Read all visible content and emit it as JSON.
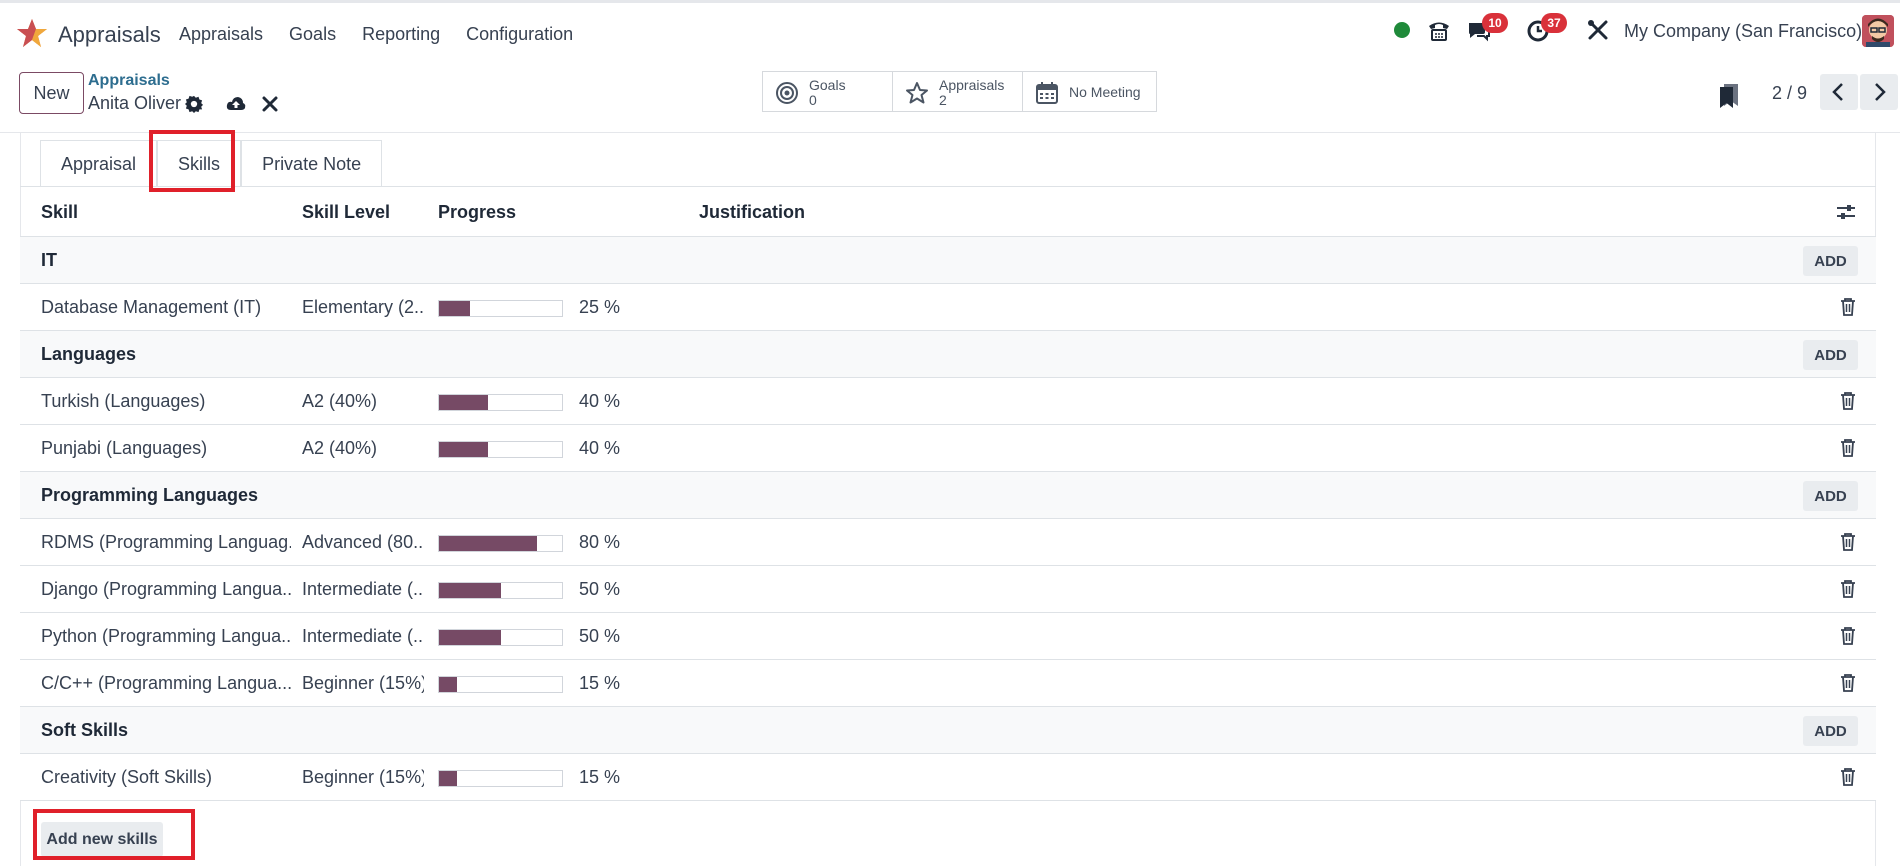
{
  "navbar": {
    "app_name": "Appraisals",
    "menu": [
      "Appraisals",
      "Goals",
      "Reporting",
      "Configuration"
    ],
    "messages_count": "10",
    "activities_count": "37",
    "company": "My Company (San Francisco)",
    "status_color": "#1f8a3a",
    "badge_color": "#d9313a"
  },
  "control_panel": {
    "new_label": "New",
    "breadcrumb_parent": "Appraisals",
    "record_name": "Anita Oliver",
    "smart_buttons": [
      {
        "icon": "bullseye-icon",
        "line1": "Goals",
        "line2": "0"
      },
      {
        "icon": "star-icon",
        "line1": "Appraisals",
        "line2": "2"
      },
      {
        "icon": "calendar-icon",
        "line1": "No Meeting",
        "line2": ""
      }
    ],
    "pager": "2 / 9"
  },
  "tabs": [
    "Appraisal",
    "Skills",
    "Private Note"
  ],
  "active_tab": "Skills",
  "table": {
    "headers": {
      "skill": "Skill",
      "level": "Skill Level",
      "progress": "Progress",
      "justification": "Justification"
    },
    "add_label": "ADD",
    "groups": [
      {
        "name": "IT",
        "rows": [
          {
            "skill": "Database Management (IT)",
            "level": "Elementary (2...",
            "progress": 25,
            "progress_label": "25 %"
          }
        ]
      },
      {
        "name": "Languages",
        "rows": [
          {
            "skill": "Turkish (Languages)",
            "level": "A2 (40%)",
            "progress": 40,
            "progress_label": "40 %"
          },
          {
            "skill": "Punjabi (Languages)",
            "level": "A2 (40%)",
            "progress": 40,
            "progress_label": "40 %"
          }
        ]
      },
      {
        "name": "Programming Languages",
        "rows": [
          {
            "skill": "RDMS (Programming Languag...",
            "level": "Advanced (80...",
            "progress": 80,
            "progress_label": "80 %"
          },
          {
            "skill": "Django (Programming Langua...",
            "level": "Intermediate (...",
            "progress": 50,
            "progress_label": "50 %"
          },
          {
            "skill": "Python (Programming Langua...",
            "level": "Intermediate (...",
            "progress": 50,
            "progress_label": "50 %"
          },
          {
            "skill": "C/C++ (Programming Langua...",
            "level": "Beginner (15%)",
            "progress": 15,
            "progress_label": "15 %"
          }
        ]
      },
      {
        "name": "Soft Skills",
        "rows": [
          {
            "skill": "Creativity (Soft Skills)",
            "level": "Beginner (15%)",
            "progress": 15,
            "progress_label": "15 %"
          }
        ]
      }
    ]
  },
  "add_new_skills_label": "Add new skills",
  "colors": {
    "progress_fill": "#764a65",
    "highlight": "#e0202a",
    "link": "#2d6d8f"
  }
}
